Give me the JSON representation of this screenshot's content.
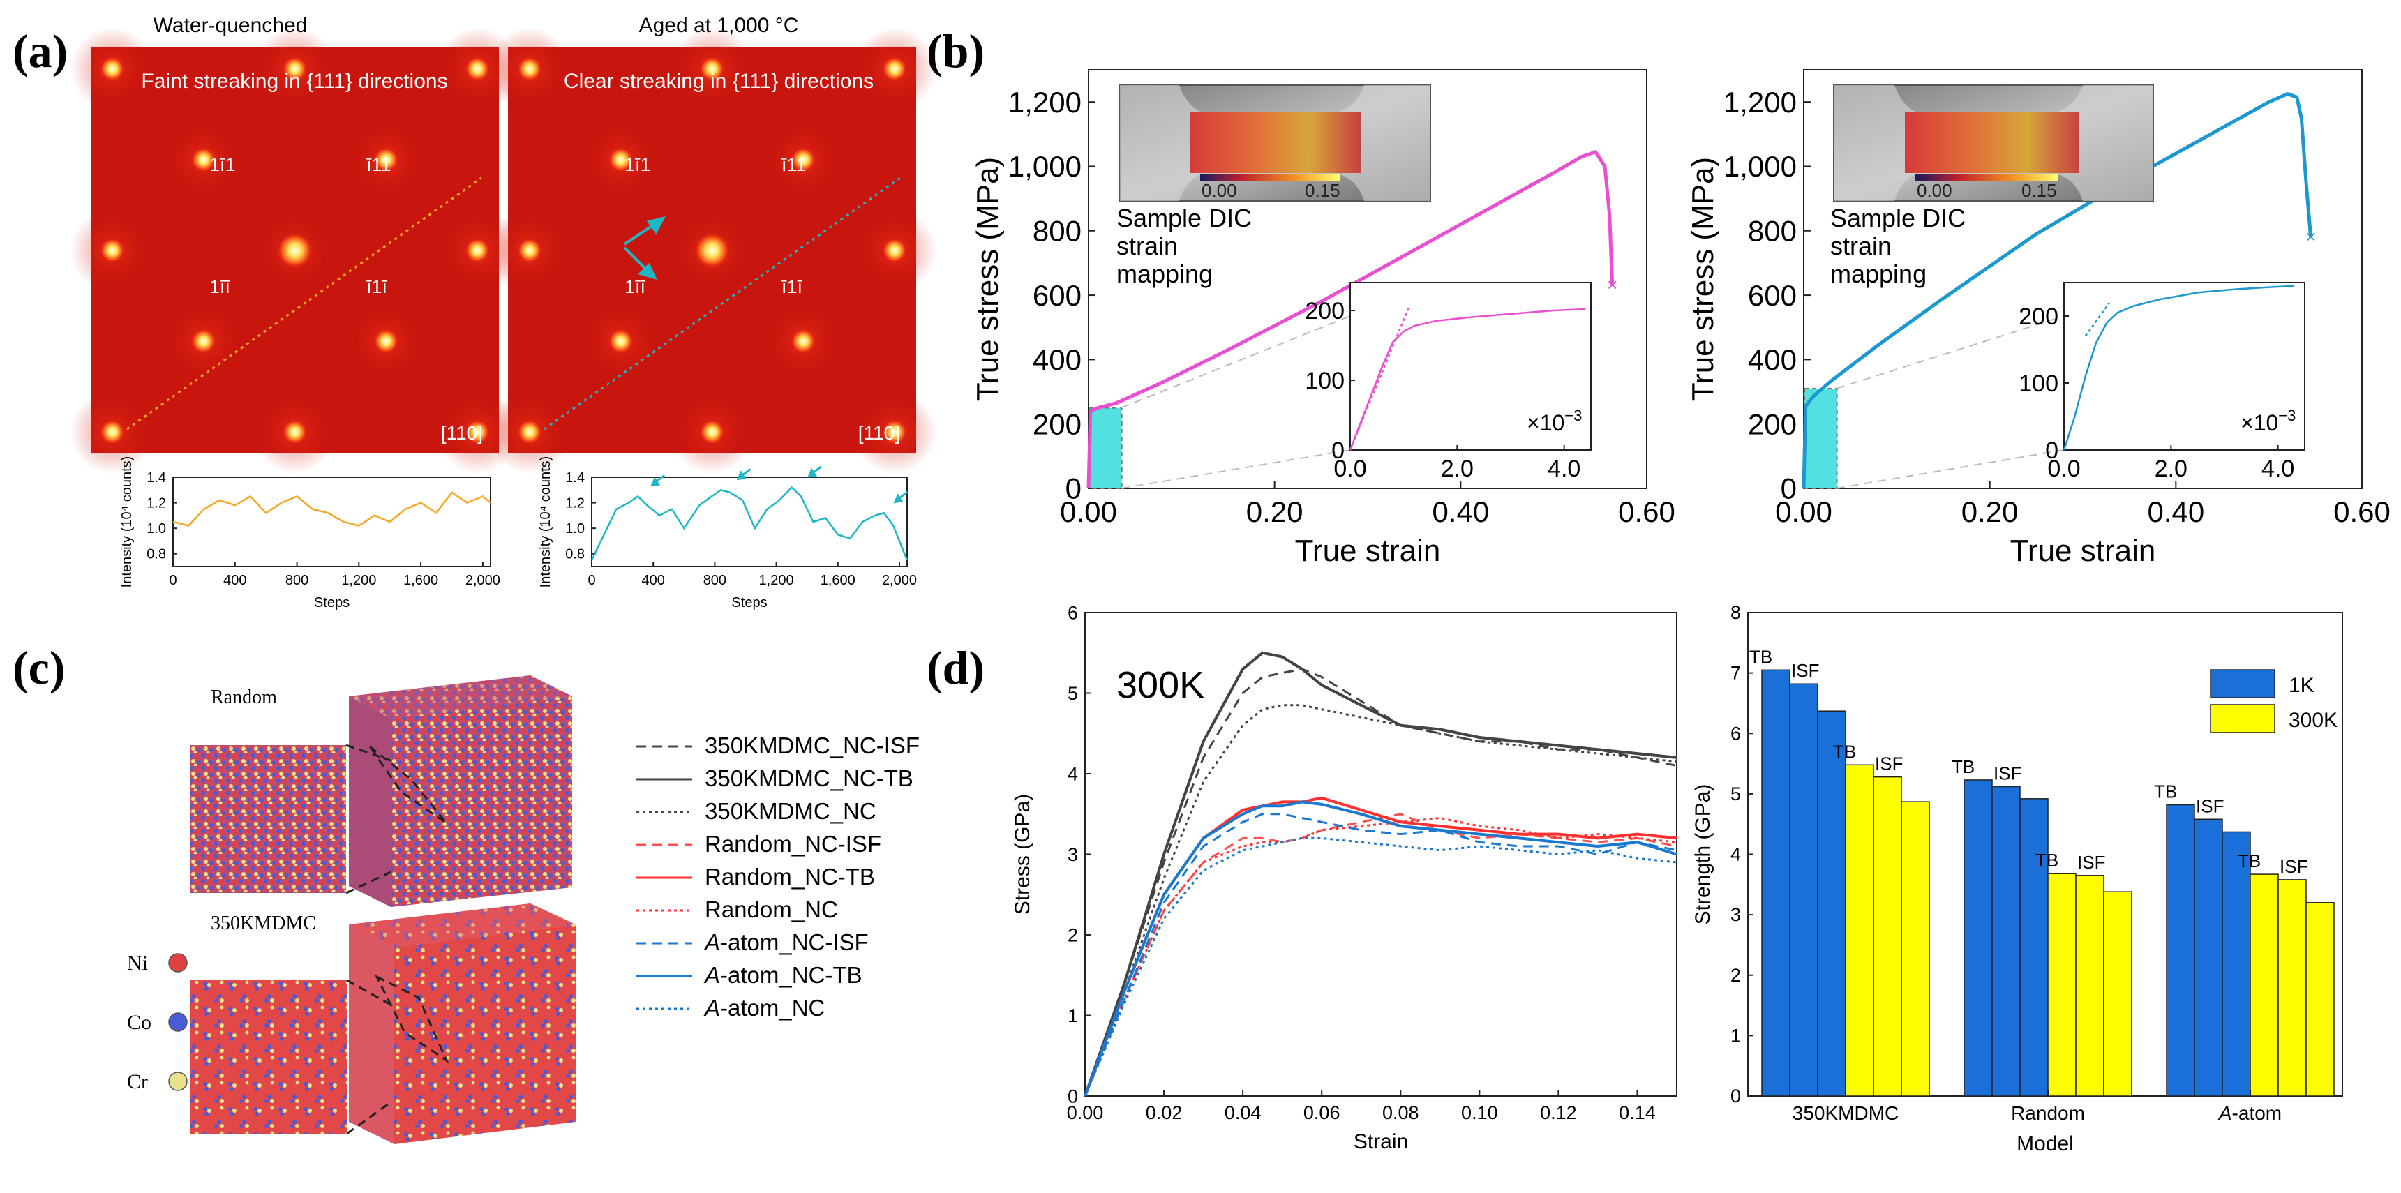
{
  "panel_labels": [
    "(a)",
    "(b)",
    "(c)",
    "(d)"
  ],
  "panel_a": {
    "left_title": "Water-quenched",
    "right_title": "Aged at 1,000 °C",
    "left_caption": "Faint streaking in {111} directions",
    "right_caption": "Clear streaking in {111} directions",
    "spot_labels": {
      "top_left": "1ī1",
      "top_right": "ī11",
      "bottom_left": "1īī",
      "bottom_right": "ī1ī"
    },
    "zone_axis": "[110]",
    "colors": {
      "left_line": "#f5a623",
      "right_line": "#1fb7c6"
    }
  },
  "panel_b": {
    "inset_image_caption": [
      "Sample DIC",
      "strain",
      "mapping"
    ],
    "colorbar_labels": [
      "0.00",
      "0.15"
    ],
    "inset_multiplier": "×10",
    "inset_multiplier_exp": "−3",
    "colors": {
      "left_curve": "#ea4fd0",
      "right_curve": "#1b98d0",
      "elastic_box": "#52e0e0"
    }
  },
  "panel_c": {
    "random_label": "Random",
    "mdmc_label": "350KMDMC",
    "elements": [
      {
        "name": "Ni",
        "color": "#e04040"
      },
      {
        "name": "Co",
        "color": "#4a5bd8"
      },
      {
        "name": "Cr",
        "color": "#e8e28a"
      }
    ],
    "legend": [
      {
        "label": "350KMDMC_NC-ISF",
        "color": "#444444",
        "dash": "14,9"
      },
      {
        "label": "350KMDMC_NC-TB",
        "color": "#444444",
        "dash": ""
      },
      {
        "label": "350KMDMC_NC",
        "color": "#444444",
        "dash": "4,5"
      },
      {
        "label": "Random_NC-ISF",
        "color": "#ff5050",
        "dash": "14,9"
      },
      {
        "label": "Random_NC-TB",
        "color": "#ff3030",
        "dash": ""
      },
      {
        "label": "Random_NC",
        "color": "#ff3030",
        "dash": "4,5"
      },
      {
        "label": "A-atom_NC-ISF",
        "color": "#1a78d0",
        "dash": "14,9"
      },
      {
        "label": "A-atom_NC-TB",
        "color": "#1a78d0",
        "dash": ""
      },
      {
        "label": "A-atom_NC",
        "color": "#1a78d0",
        "dash": "4,5"
      }
    ]
  },
  "panel_d": {
    "temperature_label": "300K",
    "legend_1K": "1K",
    "legend_300K": "300K"
  },
  "chart_data": [
    {
      "id": "a_left_profile",
      "type": "line",
      "title": "",
      "xlabel": "Steps",
      "ylabel": "Intensity (10⁴ counts)",
      "xlim": [
        0,
        2050
      ],
      "ylim": [
        0.7,
        1.4
      ],
      "xticks": [
        0,
        400,
        800,
        1200,
        1600,
        2000
      ],
      "xtick_labels": [
        "0",
        "400",
        "800",
        "1,200",
        "1,600",
        "2,000"
      ],
      "yticks": [
        0.8,
        1.0,
        1.2,
        1.4
      ],
      "ytick_labels": [
        "0.8",
        "1.0",
        "1.2",
        "1.4"
      ],
      "series": [
        {
          "name": "Water-quenched",
          "color": "#f5a623",
          "x": [
            0,
            100,
            200,
            300,
            400,
            500,
            600,
            700,
            800,
            900,
            1000,
            1100,
            1200,
            1300,
            1400,
            1500,
            1600,
            1700,
            1800,
            1900,
            2000,
            2050
          ],
          "y": [
            1.05,
            1.02,
            1.15,
            1.22,
            1.18,
            1.25,
            1.12,
            1.2,
            1.25,
            1.15,
            1.12,
            1.05,
            1.02,
            1.1,
            1.05,
            1.15,
            1.2,
            1.12,
            1.28,
            1.2,
            1.25,
            1.2
          ]
        }
      ]
    },
    {
      "id": "a_right_profile",
      "type": "line",
      "title": "",
      "xlabel": "Steps",
      "ylabel": "Intensity (10⁴ counts)",
      "xlim": [
        0,
        2050
      ],
      "ylim": [
        0.7,
        1.4
      ],
      "xticks": [
        0,
        400,
        800,
        1200,
        1600,
        2000
      ],
      "xtick_labels": [
        "0",
        "400",
        "800",
        "1,200",
        "1,600",
        "2,000"
      ],
      "yticks": [
        0.8,
        1.0,
        1.2,
        1.4
      ],
      "ytick_labels": [
        "0.8",
        "1.0",
        "1.2",
        "1.4"
      ],
      "series": [
        {
          "name": "Aged at 1,000 °C",
          "color": "#1fb7c6",
          "x": [
            0,
            80,
            160,
            240,
            300,
            360,
            440,
            520,
            600,
            700,
            780,
            840,
            900,
            980,
            1060,
            1140,
            1220,
            1300,
            1360,
            1440,
            1520,
            1600,
            1680,
            1760,
            1840,
            1900,
            1960,
            2050
          ],
          "y": [
            0.75,
            0.95,
            1.15,
            1.2,
            1.25,
            1.18,
            1.1,
            1.15,
            1.0,
            1.18,
            1.25,
            1.3,
            1.28,
            1.22,
            1.0,
            1.15,
            1.22,
            1.32,
            1.25,
            1.05,
            1.08,
            0.95,
            0.92,
            1.05,
            1.1,
            1.12,
            1.02,
            0.75
          ]
        }
      ],
      "annotations": [
        {
          "type": "arrow",
          "x": 300,
          "y": 1.25
        },
        {
          "type": "arrow",
          "x": 860,
          "y": 1.3
        },
        {
          "type": "arrow",
          "x": 1320,
          "y": 1.32
        },
        {
          "type": "arrow",
          "x": 1880,
          "y": 1.12
        }
      ]
    },
    {
      "id": "b_left",
      "type": "line",
      "title": "",
      "xlabel": "True strain",
      "ylabel": "True stress (MPa)",
      "xlim": [
        0,
        0.6
      ],
      "ylim": [
        0,
        1300
      ],
      "xticks": [
        0,
        0.2,
        0.4,
        0.6
      ],
      "xtick_labels": [
        "0.00",
        "0.20",
        "0.40",
        "0.60"
      ],
      "yticks": [
        0,
        200,
        400,
        600,
        800,
        1000,
        1200
      ],
      "ytick_labels": [
        "0",
        "200",
        "400",
        "600",
        "800",
        "1,000",
        "1,200"
      ],
      "series": [
        {
          "name": "stress-strain",
          "color": "#ea4fd0",
          "x": [
            0,
            0.002,
            0.01,
            0.03,
            0.08,
            0.15,
            0.25,
            0.35,
            0.45,
            0.5,
            0.53,
            0.545,
            0.555,
            0.56,
            0.563
          ],
          "y": [
            0,
            240,
            250,
            265,
            330,
            430,
            580,
            740,
            900,
            980,
            1030,
            1045,
            1000,
            850,
            630
          ]
        }
      ],
      "elastic_box": {
        "x": [
          0,
          0.035
        ],
        "y": [
          0,
          250
        ]
      },
      "inset": {
        "xlim": [
          0,
          4.5
        ],
        "ylim": [
          0,
          240
        ],
        "xticks": [
          0,
          2,
          4
        ],
        "xtick_labels": [
          "0.0",
          "2.0",
          "4.0"
        ],
        "yticks": [
          0,
          100,
          200
        ],
        "ytick_labels": [
          "0",
          "100",
          "200"
        ],
        "series": [
          {
            "name": "zoom",
            "color": "#ea4fd0",
            "x": [
              0,
              0.3,
              0.6,
              0.8,
              1.0,
              1.2,
              1.6,
              2.2,
              3.0,
              3.8,
              4.4
            ],
            "y": [
              0,
              60,
              120,
              155,
              170,
              178,
              185,
              190,
              195,
              200,
              202
            ]
          }
        ],
        "fit": {
          "x": [
            0,
            1.1
          ],
          "y": [
            0,
            205
          ]
        }
      }
    },
    {
      "id": "b_right",
      "type": "line",
      "title": "",
      "xlabel": "True strain",
      "ylabel": "True stress (MPa)",
      "xlim": [
        0,
        0.6
      ],
      "ylim": [
        0,
        1300
      ],
      "xticks": [
        0,
        0.2,
        0.4,
        0.6
      ],
      "xtick_labels": [
        "0.00",
        "0.20",
        "0.40",
        "0.60"
      ],
      "yticks": [
        0,
        200,
        400,
        600,
        800,
        1000,
        1200
      ],
      "ytick_labels": [
        "0",
        "200",
        "400",
        "600",
        "800",
        "1,000",
        "1,200"
      ],
      "series": [
        {
          "name": "stress-strain",
          "color": "#1b98d0",
          "x": [
            0,
            0.002,
            0.01,
            0.03,
            0.08,
            0.15,
            0.25,
            0.35,
            0.45,
            0.5,
            0.52,
            0.53,
            0.535,
            0.54,
            0.545
          ],
          "y": [
            0,
            255,
            285,
            335,
            445,
            590,
            790,
            960,
            1120,
            1200,
            1225,
            1215,
            1150,
            950,
            780
          ]
        }
      ],
      "elastic_box": {
        "x": [
          0,
          0.035
        ],
        "y": [
          0,
          310
        ]
      },
      "inset": {
        "xlim": [
          0,
          4.5
        ],
        "ylim": [
          0,
          250
        ],
        "xticks": [
          0,
          2,
          4
        ],
        "xtick_labels": [
          "0.0",
          "2.0",
          "4.0"
        ],
        "yticks": [
          0,
          100,
          200
        ],
        "ytick_labels": [
          "0",
          "100",
          "200"
        ],
        "series": [
          {
            "name": "zoom",
            "color": "#1b98d0",
            "x": [
              0,
              0.2,
              0.4,
              0.6,
              0.8,
              1.0,
              1.3,
              1.8,
              2.5,
              3.2,
              3.8,
              4.3
            ],
            "y": [
              0,
              50,
              110,
              160,
              190,
              205,
              215,
              225,
              235,
              240,
              243,
              245
            ]
          }
        ],
        "fit": {
          "x": [
            0.4,
            0.85
          ],
          "y": [
            170,
            220
          ]
        }
      }
    },
    {
      "id": "d_left",
      "type": "line",
      "title": "",
      "xlabel": "Strain",
      "ylabel": "Stress (GPa)",
      "xlim": [
        0,
        0.15
      ],
      "ylim": [
        0,
        6
      ],
      "xticks": [
        0,
        0.02,
        0.04,
        0.06,
        0.08,
        0.1,
        0.12,
        0.14
      ],
      "xtick_labels": [
        "0.00",
        "0.02",
        "0.04",
        "0.06",
        "0.08",
        "0.10",
        "0.12",
        "0.14"
      ],
      "yticks": [
        0,
        1,
        2,
        3,
        4,
        5,
        6
      ],
      "ytick_labels": [
        "0",
        "1",
        "2",
        "3",
        "4",
        "5",
        "6"
      ],
      "x": [
        0,
        0.01,
        0.02,
        0.03,
        0.04,
        0.045,
        0.05,
        0.055,
        0.06,
        0.07,
        0.08,
        0.09,
        0.1,
        0.11,
        0.12,
        0.13,
        0.14,
        0.15
      ],
      "series": [
        {
          "name": "350KMDMC_NC-ISF",
          "color": "#444444",
          "dash": "14,9",
          "y": [
            0,
            1.4,
            2.9,
            4.2,
            5.0,
            5.2,
            5.25,
            5.3,
            5.2,
            4.9,
            4.6,
            4.5,
            4.4,
            4.4,
            4.3,
            4.3,
            4.2,
            4.1
          ]
        },
        {
          "name": "350KMDMC_NC-TB",
          "color": "#444444",
          "dash": "",
          "y": [
            0,
            1.4,
            3.0,
            4.4,
            5.3,
            5.5,
            5.45,
            5.3,
            5.1,
            4.85,
            4.6,
            4.55,
            4.45,
            4.4,
            4.35,
            4.3,
            4.25,
            4.2
          ]
        },
        {
          "name": "350KMDMC_NC",
          "color": "#444444",
          "dash": "4,5",
          "y": [
            0,
            1.3,
            2.7,
            3.9,
            4.6,
            4.8,
            4.85,
            4.85,
            4.8,
            4.7,
            4.6,
            4.5,
            4.4,
            4.35,
            4.3,
            4.25,
            4.2,
            4.15
          ]
        },
        {
          "name": "Random_NC-ISF",
          "color": "#ff5050",
          "dash": "14,9",
          "y": [
            0,
            1.2,
            2.3,
            2.9,
            3.2,
            3.2,
            3.15,
            3.2,
            3.3,
            3.4,
            3.5,
            3.3,
            3.2,
            3.25,
            3.2,
            3.15,
            3.2,
            3.1
          ]
        },
        {
          "name": "Random_NC-TB",
          "color": "#ff3030",
          "dash": "",
          "y": [
            0,
            1.3,
            2.5,
            3.2,
            3.55,
            3.6,
            3.65,
            3.65,
            3.7,
            3.55,
            3.4,
            3.35,
            3.3,
            3.25,
            3.25,
            3.2,
            3.25,
            3.2
          ]
        },
        {
          "name": "Random_NC",
          "color": "#ff3030",
          "dash": "4,5",
          "y": [
            0,
            1.2,
            2.3,
            2.9,
            3.1,
            3.15,
            3.15,
            3.2,
            3.3,
            3.35,
            3.4,
            3.45,
            3.35,
            3.3,
            3.2,
            3.25,
            3.2,
            3.15
          ]
        },
        {
          "name": "A-atom_NC-ISF",
          "color": "#1a78d0",
          "dash": "14,9",
          "y": [
            0,
            1.2,
            2.4,
            3.1,
            3.4,
            3.5,
            3.5,
            3.45,
            3.4,
            3.3,
            3.25,
            3.3,
            3.15,
            3.1,
            3.1,
            3.0,
            3.15,
            3.05
          ]
        },
        {
          "name": "A-atom_NC-TB",
          "color": "#1a78d0",
          "dash": "",
          "y": [
            0,
            1.3,
            2.5,
            3.2,
            3.5,
            3.6,
            3.6,
            3.65,
            3.62,
            3.5,
            3.35,
            3.3,
            3.25,
            3.2,
            3.15,
            3.1,
            3.15,
            3.0
          ]
        },
        {
          "name": "A-atom_NC",
          "color": "#1a78d0",
          "dash": "4,5",
          "y": [
            0,
            1.15,
            2.2,
            2.8,
            3.05,
            3.1,
            3.15,
            3.2,
            3.2,
            3.15,
            3.1,
            3.05,
            3.1,
            3.05,
            3.0,
            3.05,
            2.95,
            2.9
          ]
        }
      ]
    },
    {
      "id": "d_right",
      "type": "bar",
      "title": "",
      "xlabel": "Model",
      "ylabel": "Strength (GPa)",
      "ylim": [
        0,
        8
      ],
      "yticks": [
        0,
        1,
        2,
        3,
        4,
        5,
        6,
        7,
        8
      ],
      "ytick_labels": [
        "0",
        "1",
        "2",
        "3",
        "4",
        "5",
        "6",
        "7",
        "8"
      ],
      "categories": [
        "350KMDMC",
        "Random",
        "A-atom"
      ],
      "bar_labels": [
        "TB",
        "ISF",
        ""
      ],
      "series": [
        {
          "name": "1K",
          "color": "#1a6fd8",
          "values": [
            [
              7.05,
              6.82,
              6.37
            ],
            [
              5.23,
              5.12,
              4.92
            ],
            [
              4.82,
              4.58,
              4.37
            ]
          ]
        },
        {
          "name": "300K",
          "color": "#fdfd00",
          "values": [
            [
              5.48,
              5.28,
              4.87
            ],
            [
              3.68,
              3.65,
              3.38
            ],
            [
              3.67,
              3.58,
              3.2
            ]
          ]
        }
      ]
    }
  ]
}
